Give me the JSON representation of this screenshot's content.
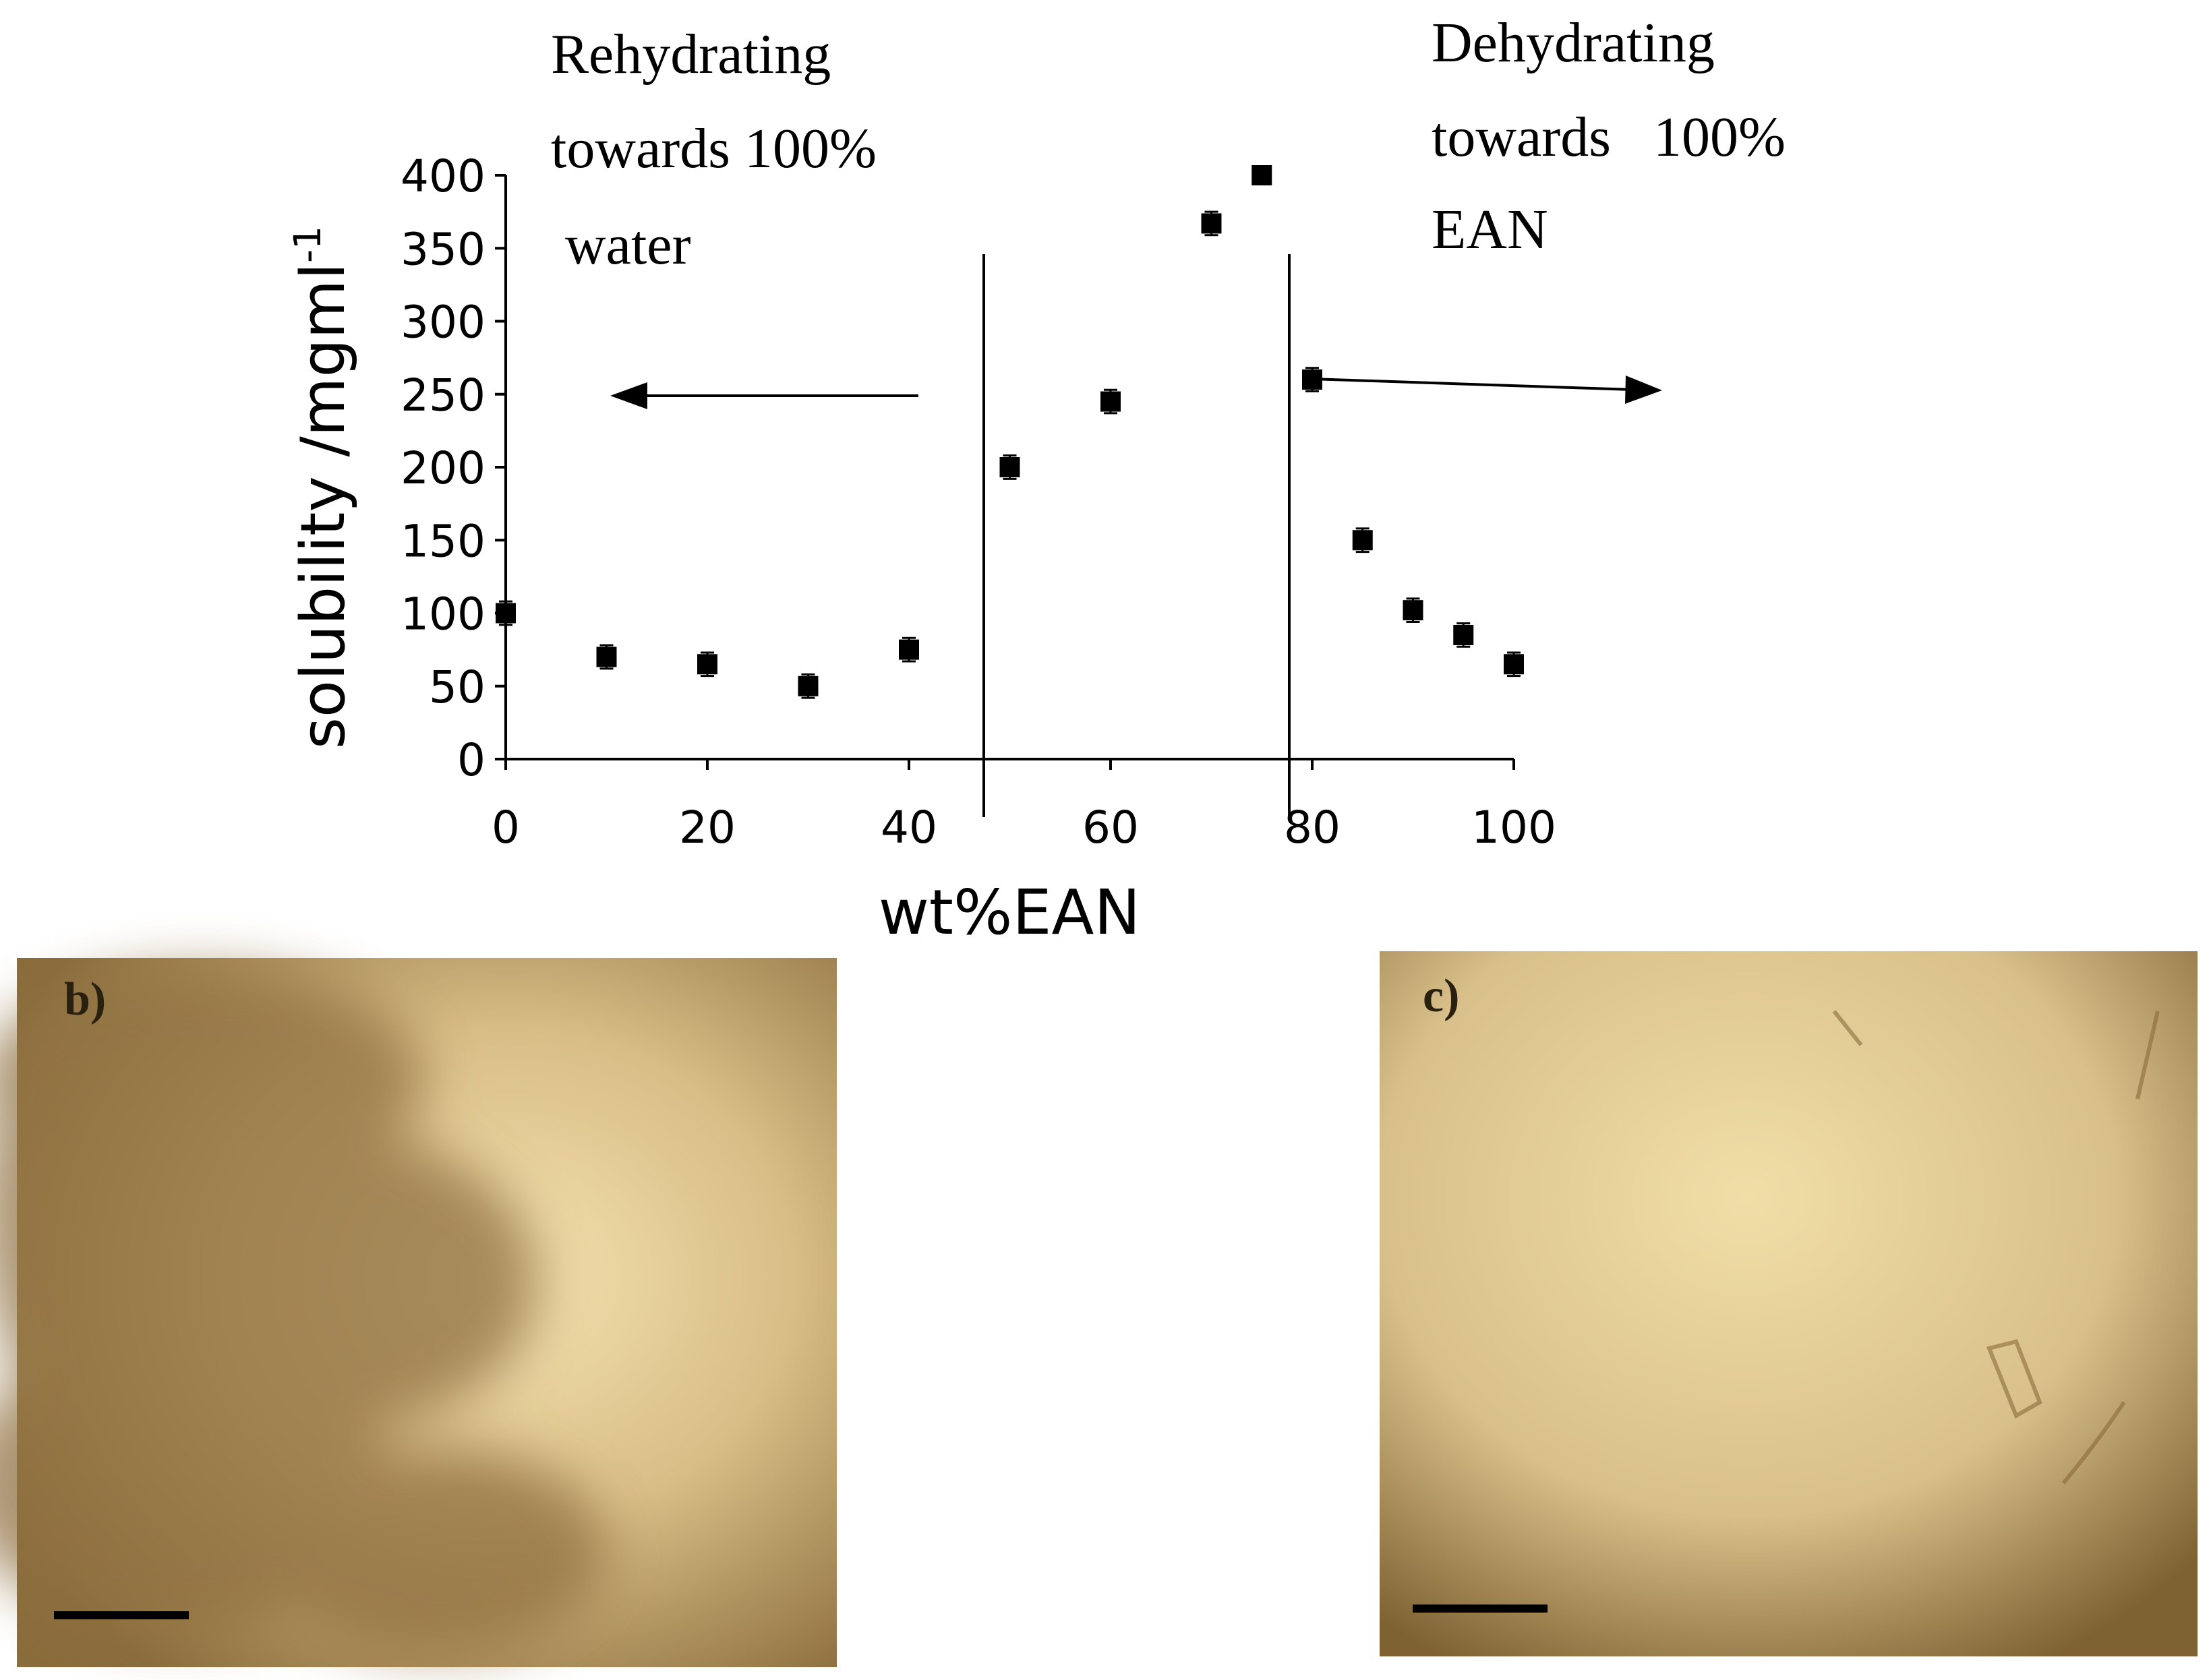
{
  "chart_data": {
    "type": "scatter",
    "xlabel": "wt%EAN",
    "ylabel": "solubility /mgml",
    "ylabel_superscript": "-1",
    "annotations": [
      {
        "lines": [
          "Rehydrating",
          "towards 100%",
          " water"
        ]
      },
      {
        "lines": [
          "Dehydrating",
          "towards   100%",
          "EAN"
        ]
      }
    ],
    "x": [
      0,
      10,
      20,
      30,
      40,
      50,
      60,
      70,
      75,
      80,
      85,
      90,
      95,
      100
    ],
    "values": [
      100,
      70,
      65,
      50,
      75,
      200,
      245,
      367,
      400,
      260,
      150,
      102,
      85,
      65
    ],
    "errors": [
      8,
      8,
      8,
      8,
      8,
      8,
      8,
      8,
      6,
      8,
      8,
      8,
      8,
      8
    ],
    "color": "#000000",
    "xlim": [
      0,
      100
    ],
    "xticks": [
      0,
      20,
      40,
      60,
      80,
      100
    ],
    "ylim": [
      0,
      400
    ],
    "yticks": [
      0,
      50,
      100,
      150,
      200,
      250,
      300,
      350,
      400
    ],
    "grid": false
  },
  "panels": [
    {
      "label": "b)"
    },
    {
      "label": "c)"
    }
  ]
}
